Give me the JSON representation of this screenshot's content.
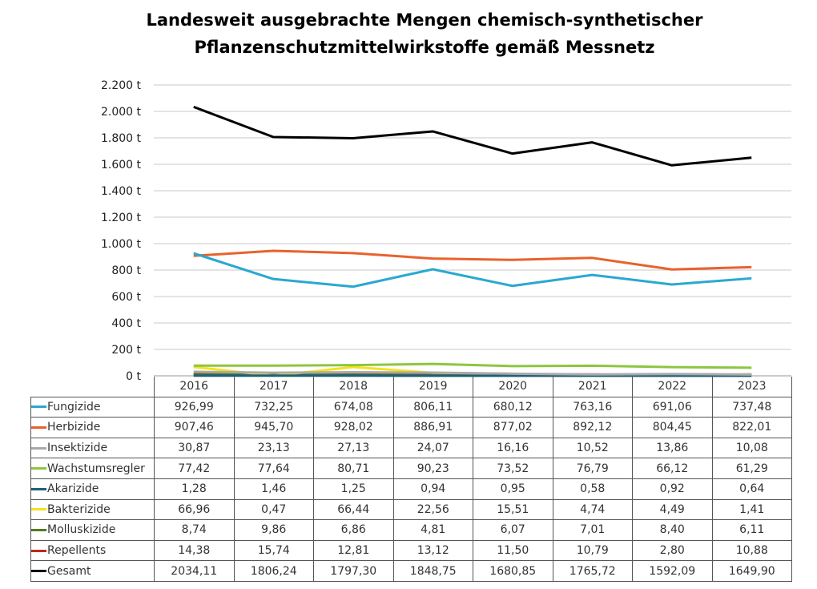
{
  "chart_data": {
    "type": "line",
    "title_lines": [
      "Landesweit ausgebrachte Mengen chemisch-synthetischer",
      "Pflanzenschutzmittelwirkstoffe gemäß Messnetz"
    ],
    "categories": [
      "2016",
      "2017",
      "2018",
      "2019",
      "2020",
      "2021",
      "2022",
      "2023"
    ],
    "ylim": [
      0,
      2200
    ],
    "yticks": [
      0,
      200,
      400,
      600,
      800,
      1000,
      1200,
      1400,
      1600,
      1800,
      2000,
      2200
    ],
    "ytick_labels": [
      "0 t",
      "200 t",
      "400 t",
      "600 t",
      "800 t",
      "1.000 t",
      "1.200 t",
      "1.400 t",
      "1.600 t",
      "1.800 t",
      "2.000 t",
      "2.200 t"
    ],
    "grid": "horizontal",
    "legend": "data-table",
    "series": [
      {
        "name": "Fungizide",
        "color": "#2aa8d0",
        "values": [
          926.99,
          732.25,
          674.08,
          806.11,
          680.12,
          763.16,
          691.06,
          737.48
        ],
        "labels": [
          "926,99",
          "732,25",
          "674,08",
          "806,11",
          "680,12",
          "763,16",
          "691,06",
          "737,48"
        ]
      },
      {
        "name": "Herbizide",
        "color": "#e8622c",
        "values": [
          907.46,
          945.7,
          928.02,
          886.91,
          877.02,
          892.12,
          804.45,
          822.01
        ],
        "labels": [
          "907,46",
          "945,70",
          "928,02",
          "886,91",
          "877,02",
          "892,12",
          "804,45",
          "822,01"
        ]
      },
      {
        "name": "Insektizide",
        "color": "#a9a9a9",
        "values": [
          30.87,
          23.13,
          27.13,
          24.07,
          16.16,
          10.52,
          13.86,
          10.08
        ],
        "labels": [
          "30,87",
          "23,13",
          "27,13",
          "24,07",
          "16,16",
          "10,52",
          "13,86",
          "10,08"
        ]
      },
      {
        "name": "Wachstumsregler",
        "color": "#8dc63f",
        "values": [
          77.42,
          77.64,
          80.71,
          90.23,
          73.52,
          76.79,
          66.12,
          61.29
        ],
        "labels": [
          "77,42",
          "77,64",
          "80,71",
          "90,23",
          "73,52",
          "76,79",
          "66,12",
          "61,29"
        ]
      },
      {
        "name": "Akarizide",
        "color": "#1e5f78",
        "values": [
          1.28,
          1.46,
          1.25,
          0.94,
          0.95,
          0.58,
          0.92,
          0.64
        ],
        "labels": [
          "1,28",
          "1,46",
          "1,25",
          "0,94",
          "0,95",
          "0,58",
          "0,92",
          "0,64"
        ]
      },
      {
        "name": "Bakterizide",
        "color": "#f3e31f",
        "values": [
          66.96,
          0.47,
          66.44,
          22.56,
          15.51,
          4.74,
          4.49,
          1.41
        ],
        "labels": [
          "66,96",
          "0,47",
          "66,44",
          "22,56",
          "15,51",
          "4,74",
          "4,49",
          "1,41"
        ]
      },
      {
        "name": "Molluskizide",
        "color": "#4e7e1e",
        "values": [
          8.74,
          9.86,
          6.86,
          4.81,
          6.07,
          7.01,
          8.4,
          6.11
        ],
        "labels": [
          "8,74",
          "9,86",
          "6,86",
          "4,81",
          "6,07",
          "7,01",
          "8,40",
          "6,11"
        ]
      },
      {
        "name": "Repellents",
        "color": "#c0281c",
        "values": [
          14.38,
          15.74,
          12.81,
          13.12,
          11.5,
          10.79,
          2.8,
          10.88
        ],
        "labels": [
          "14,38",
          "15,74",
          "12,81",
          "13,12",
          "11,50",
          "10,79",
          "2,80",
          "10,88"
        ]
      },
      {
        "name": "Gesamt",
        "color": "#000000",
        "values": [
          2034.11,
          1806.24,
          1797.3,
          1848.75,
          1680.85,
          1765.72,
          1592.09,
          1649.9
        ],
        "labels": [
          "2034,11",
          "1806,24",
          "1797,30",
          "1848,75",
          "1680,85",
          "1765,72",
          "1592,09",
          "1649,90"
        ]
      }
    ]
  }
}
